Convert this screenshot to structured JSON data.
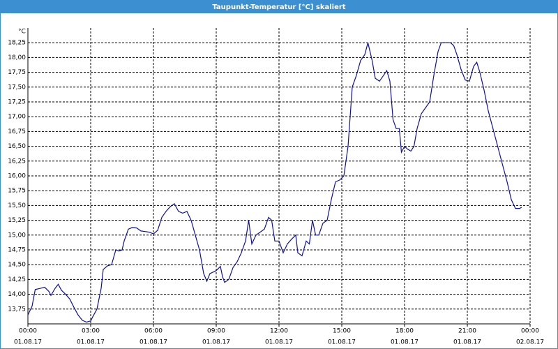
{
  "chart_data": {
    "type": "line",
    "title": "Taupunkt-Temperatur [°C] skaliert",
    "y_label": "°C",
    "x": [
      0.0,
      0.2,
      0.35,
      0.6,
      0.8,
      1.0,
      1.1,
      1.3,
      1.45,
      1.6,
      1.8,
      2.0,
      2.2,
      2.4,
      2.6,
      2.8,
      3.0,
      3.1,
      3.3,
      3.5,
      3.6,
      3.8,
      4.0,
      4.2,
      4.35,
      4.5,
      4.6,
      4.8,
      5.0,
      5.2,
      5.4,
      5.6,
      5.8,
      6.0,
      6.2,
      6.4,
      6.6,
      6.8,
      7.0,
      7.2,
      7.4,
      7.6,
      7.8,
      8.0,
      8.2,
      8.4,
      8.55,
      8.7,
      9.0,
      9.2,
      9.3,
      9.4,
      9.6,
      9.8,
      10.0,
      10.2,
      10.4,
      10.55,
      10.7,
      10.9,
      11.1,
      11.3,
      11.5,
      11.65,
      11.8,
      12.0,
      12.2,
      12.4,
      12.6,
      12.8,
      12.9,
      13.1,
      13.3,
      13.45,
      13.6,
      13.75,
      13.9,
      14.1,
      14.3,
      14.5,
      14.7,
      14.9,
      15.1,
      15.3,
      15.5,
      15.7,
      15.9,
      16.1,
      16.25,
      16.45,
      16.6,
      16.8,
      17.0,
      17.15,
      17.3,
      17.45,
      17.6,
      17.75,
      17.85,
      18.0,
      18.15,
      18.3,
      18.45,
      18.6,
      18.8,
      19.0,
      19.2,
      19.4,
      19.6,
      19.75,
      20.0,
      20.2,
      20.35,
      20.5,
      20.7,
      20.9,
      21.1,
      21.3,
      21.45,
      21.6,
      21.8,
      22.0,
      22.3,
      22.6,
      22.9,
      23.1,
      23.3,
      23.5,
      23.6
    ],
    "series": [
      {
        "color": "#1010a0",
        "values": [
          13.65,
          13.8,
          14.08,
          14.1,
          14.12,
          14.05,
          13.98,
          14.1,
          14.17,
          14.07,
          14.0,
          13.92,
          13.78,
          13.65,
          13.56,
          13.53,
          13.55,
          13.62,
          13.75,
          14.1,
          14.42,
          14.48,
          14.5,
          14.75,
          14.73,
          14.75,
          14.9,
          15.1,
          15.13,
          15.12,
          15.07,
          15.06,
          15.05,
          15.02,
          15.08,
          15.3,
          15.4,
          15.48,
          15.53,
          15.4,
          15.37,
          15.4,
          15.25,
          15.0,
          14.75,
          14.35,
          14.22,
          14.35,
          14.4,
          14.47,
          14.3,
          14.2,
          14.25,
          14.45,
          14.55,
          14.7,
          14.9,
          15.25,
          14.85,
          15.0,
          15.05,
          15.1,
          15.3,
          15.25,
          14.9,
          14.9,
          14.7,
          14.85,
          14.93,
          15.0,
          14.7,
          14.65,
          14.9,
          14.85,
          15.25,
          15.0,
          15.0,
          15.2,
          15.25,
          15.6,
          15.9,
          15.93,
          16.0,
          16.5,
          17.5,
          17.7,
          17.95,
          18.05,
          18.25,
          17.95,
          17.65,
          17.6,
          17.7,
          17.78,
          17.6,
          16.95,
          16.8,
          16.8,
          16.4,
          16.5,
          16.45,
          16.42,
          16.5,
          16.8,
          17.05,
          17.15,
          17.25,
          17.7,
          18.1,
          18.25,
          18.25,
          18.25,
          18.2,
          18.05,
          17.8,
          17.62,
          17.6,
          17.85,
          17.92,
          17.75,
          17.45,
          17.1,
          16.7,
          16.3,
          15.9,
          15.6,
          15.45,
          15.45,
          15.47
        ]
      }
    ],
    "xlim": [
      0,
      24
    ],
    "xticks": [
      {
        "value": 0,
        "label": "00:00",
        "date": "01.08.17"
      },
      {
        "value": 3,
        "label": "03:00",
        "date": "01.08.17"
      },
      {
        "value": 6,
        "label": "06:00",
        "date": "01.08.17"
      },
      {
        "value": 9,
        "label": "09:00",
        "date": "01.08.17"
      },
      {
        "value": 12,
        "label": "12:00",
        "date": "01.08.17"
      },
      {
        "value": 15,
        "label": "15:00",
        "date": "01.08.17"
      },
      {
        "value": 18,
        "label": "18:00",
        "date": "01.08.17"
      },
      {
        "value": 21,
        "label": "21:00",
        "date": "01.08.17"
      },
      {
        "value": 24,
        "label": "00:00",
        "date": "02.08.17"
      }
    ],
    "ylim": [
      13.5,
      18.5
    ],
    "yticks": [
      {
        "value": 13.75,
        "label": "13,75"
      },
      {
        "value": 14,
        "label": "14,00"
      },
      {
        "value": 14.25,
        "label": "14,25"
      },
      {
        "value": 14.5,
        "label": "14,50"
      },
      {
        "value": 14.75,
        "label": "14,75"
      },
      {
        "value": 15,
        "label": "15,00"
      },
      {
        "value": 15.25,
        "label": "15,25"
      },
      {
        "value": 15.5,
        "label": "15,50"
      },
      {
        "value": 15.75,
        "label": "15,75"
      },
      {
        "value": 16,
        "label": "16,00"
      },
      {
        "value": 16.25,
        "label": "16,25"
      },
      {
        "value": 16.5,
        "label": "16,50"
      },
      {
        "value": 16.75,
        "label": "16,75"
      },
      {
        "value": 17,
        "label": "17,00"
      },
      {
        "value": 17.25,
        "label": "17,25"
      },
      {
        "value": 17.5,
        "label": "17,50"
      },
      {
        "value": 17.75,
        "label": "17,75"
      },
      {
        "value": 18,
        "label": "18,00"
      },
      {
        "value": 18.25,
        "label": "18,25"
      }
    ],
    "grid": true
  }
}
